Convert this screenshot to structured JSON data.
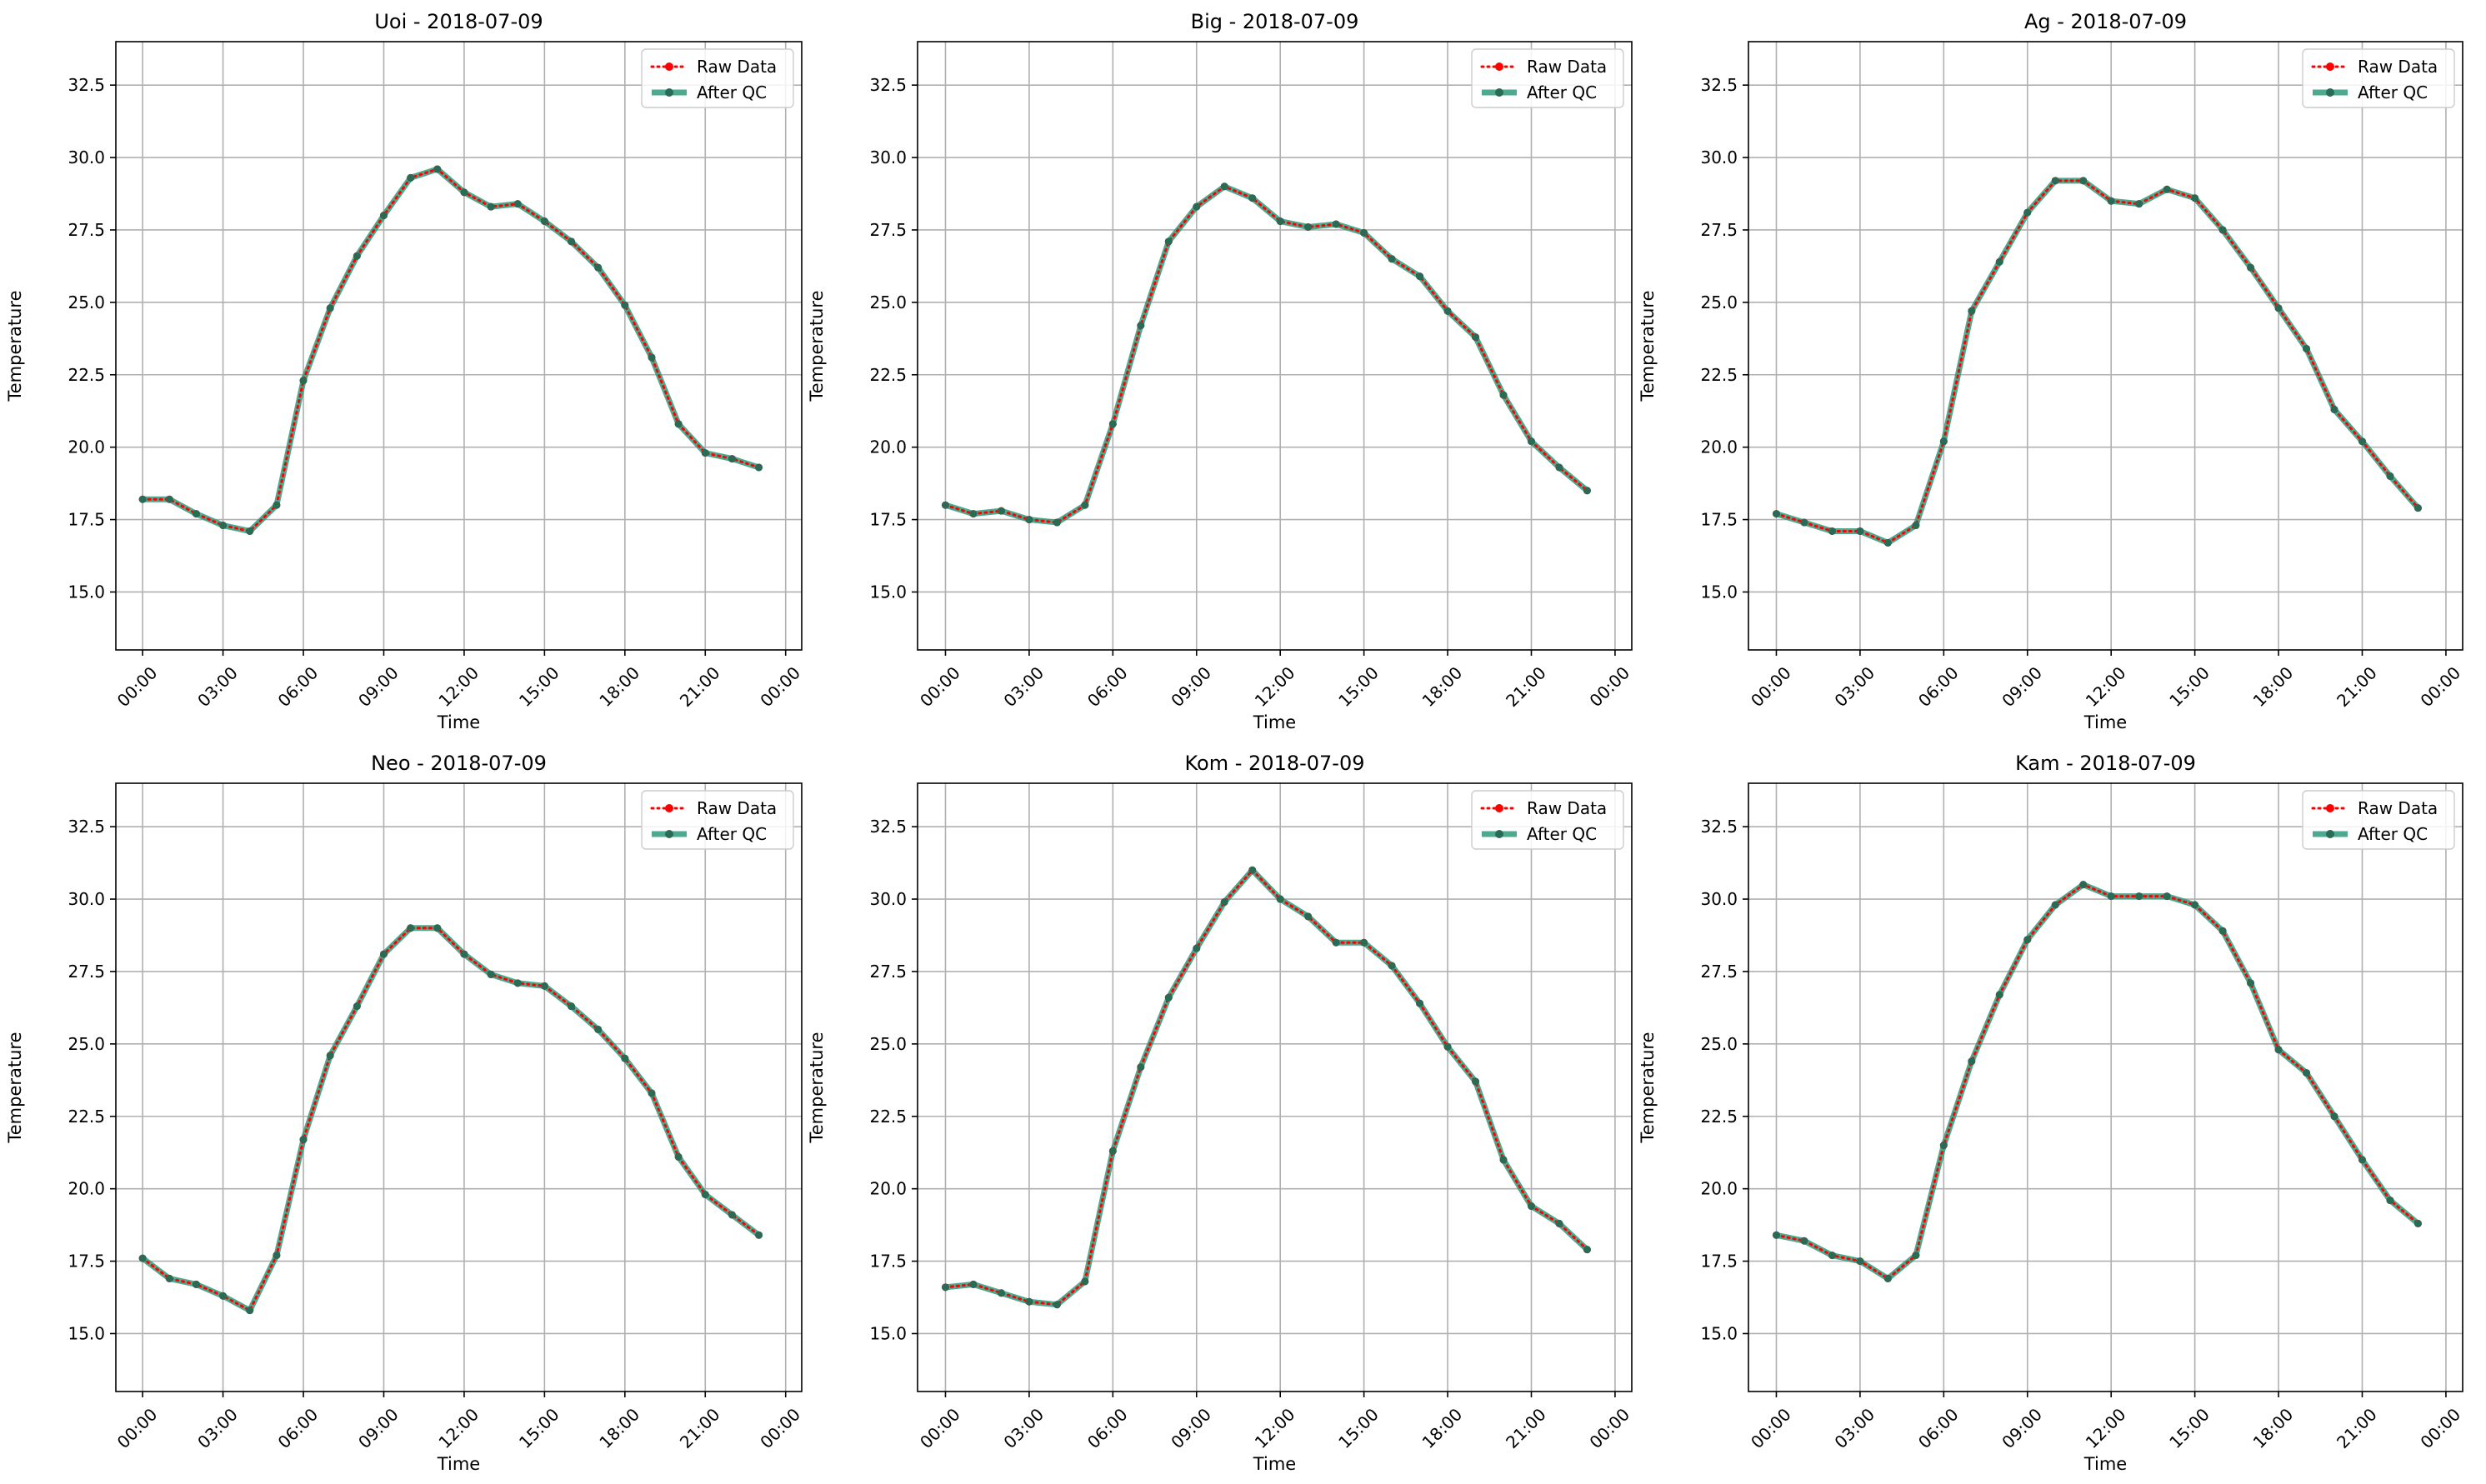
{
  "legend": {
    "raw_label": "Raw Data",
    "qc_label": "After QC"
  },
  "colors": {
    "raw": "#ff0000",
    "qc": "#2e9a7b",
    "qc_marker": "#2a6b55",
    "grid": "#b0b0b0",
    "axes": "#000000"
  },
  "chart_data": [
    {
      "type": "line",
      "title": "Uoi - 2018-07-09",
      "xlabel": "Time",
      "ylabel": "Temperature",
      "x_ticks": [
        "00:00",
        "03:00",
        "06:00",
        "09:00",
        "12:00",
        "15:00",
        "18:00",
        "21:00",
        "00:00"
      ],
      "x_hours": [
        0,
        1,
        2,
        3,
        4,
        5,
        6,
        7,
        8,
        9,
        10,
        11,
        12,
        13,
        14,
        15,
        16,
        17,
        18,
        19,
        20,
        21,
        22,
        23
      ],
      "yticks": [
        15.0,
        17.5,
        20.0,
        22.5,
        25.0,
        27.5,
        30.0,
        32.5
      ],
      "ylim": [
        13.0,
        34.0
      ],
      "grid": true,
      "legend_position": "top-right",
      "series": [
        {
          "name": "Raw Data",
          "style": "dotted",
          "values": [
            18.2,
            18.2,
            17.7,
            17.3,
            17.1,
            18.0,
            22.3,
            24.8,
            26.6,
            28.0,
            29.3,
            29.6,
            28.8,
            28.3,
            28.4,
            27.8,
            27.1,
            26.2,
            24.9,
            23.1,
            20.8,
            19.8,
            19.6,
            19.3
          ]
        },
        {
          "name": "After QC",
          "style": "solid",
          "values": [
            18.2,
            18.2,
            17.7,
            17.3,
            17.1,
            18.0,
            22.3,
            24.8,
            26.6,
            28.0,
            29.3,
            29.6,
            28.8,
            28.3,
            28.4,
            27.8,
            27.1,
            26.2,
            24.9,
            23.1,
            20.8,
            19.8,
            19.6,
            19.3
          ]
        }
      ]
    },
    {
      "type": "line",
      "title": "Big - 2018-07-09",
      "xlabel": "Time",
      "ylabel": "Temperature",
      "x_ticks": [
        "00:00",
        "03:00",
        "06:00",
        "09:00",
        "12:00",
        "15:00",
        "18:00",
        "21:00",
        "00:00"
      ],
      "x_hours": [
        0,
        1,
        2,
        3,
        4,
        5,
        6,
        7,
        8,
        9,
        10,
        11,
        12,
        13,
        14,
        15,
        16,
        17,
        18,
        19,
        20,
        21,
        22,
        23
      ],
      "yticks": [
        15.0,
        17.5,
        20.0,
        22.5,
        25.0,
        27.5,
        30.0,
        32.5
      ],
      "ylim": [
        13.0,
        34.0
      ],
      "grid": true,
      "legend_position": "top-right",
      "series": [
        {
          "name": "Raw Data",
          "style": "dotted",
          "values": [
            18.0,
            17.7,
            17.8,
            17.5,
            17.4,
            18.0,
            20.8,
            24.2,
            27.1,
            28.3,
            29.0,
            28.6,
            27.8,
            27.6,
            27.7,
            27.4,
            26.5,
            25.9,
            24.7,
            23.8,
            21.8,
            20.2,
            19.3,
            18.5
          ]
        },
        {
          "name": "After QC",
          "style": "solid",
          "values": [
            18.0,
            17.7,
            17.8,
            17.5,
            17.4,
            18.0,
            20.8,
            24.2,
            27.1,
            28.3,
            29.0,
            28.6,
            27.8,
            27.6,
            27.7,
            27.4,
            26.5,
            25.9,
            24.7,
            23.8,
            21.8,
            20.2,
            19.3,
            18.5
          ]
        }
      ]
    },
    {
      "type": "line",
      "title": "Ag - 2018-07-09",
      "xlabel": "Time",
      "ylabel": "Temperature",
      "x_ticks": [
        "00:00",
        "03:00",
        "06:00",
        "09:00",
        "12:00",
        "15:00",
        "18:00",
        "21:00",
        "00:00"
      ],
      "x_hours": [
        0,
        1,
        2,
        3,
        4,
        5,
        6,
        7,
        8,
        9,
        10,
        11,
        12,
        13,
        14,
        15,
        16,
        17,
        18,
        19,
        20,
        21,
        22,
        23
      ],
      "yticks": [
        15.0,
        17.5,
        20.0,
        22.5,
        25.0,
        27.5,
        30.0,
        32.5
      ],
      "ylim": [
        13.0,
        34.0
      ],
      "grid": true,
      "legend_position": "top-right",
      "series": [
        {
          "name": "Raw Data",
          "style": "dotted",
          "values": [
            17.7,
            17.4,
            17.1,
            17.1,
            16.7,
            17.3,
            20.2,
            24.7,
            26.4,
            28.1,
            29.2,
            29.2,
            28.5,
            28.4,
            28.9,
            28.6,
            27.5,
            26.2,
            24.8,
            23.4,
            21.3,
            20.2,
            19.0,
            17.9
          ]
        },
        {
          "name": "After QC",
          "style": "solid",
          "values": [
            17.7,
            17.4,
            17.1,
            17.1,
            16.7,
            17.3,
            20.2,
            24.7,
            26.4,
            28.1,
            29.2,
            29.2,
            28.5,
            28.4,
            28.9,
            28.6,
            27.5,
            26.2,
            24.8,
            23.4,
            21.3,
            20.2,
            19.0,
            17.9
          ]
        }
      ]
    },
    {
      "type": "line",
      "title": "Neo - 2018-07-09",
      "xlabel": "Time",
      "ylabel": "Temperature",
      "x_ticks": [
        "00:00",
        "03:00",
        "06:00",
        "09:00",
        "12:00",
        "15:00",
        "18:00",
        "21:00",
        "00:00"
      ],
      "x_hours": [
        0,
        1,
        2,
        3,
        4,
        5,
        6,
        7,
        8,
        9,
        10,
        11,
        12,
        13,
        14,
        15,
        16,
        17,
        18,
        19,
        20,
        21,
        22,
        23
      ],
      "yticks": [
        15.0,
        17.5,
        20.0,
        22.5,
        25.0,
        27.5,
        30.0,
        32.5
      ],
      "ylim": [
        13.0,
        34.0
      ],
      "grid": true,
      "legend_position": "top-right",
      "series": [
        {
          "name": "Raw Data",
          "style": "dotted",
          "values": [
            17.6,
            16.9,
            16.7,
            16.3,
            15.8,
            17.7,
            21.7,
            24.6,
            26.3,
            28.1,
            29.0,
            29.0,
            28.1,
            27.4,
            27.1,
            27.0,
            26.3,
            25.5,
            24.5,
            23.3,
            21.1,
            19.8,
            19.1,
            18.4
          ]
        },
        {
          "name": "After QC",
          "style": "solid",
          "values": [
            17.6,
            16.9,
            16.7,
            16.3,
            15.8,
            17.7,
            21.7,
            24.6,
            26.3,
            28.1,
            29.0,
            29.0,
            28.1,
            27.4,
            27.1,
            27.0,
            26.3,
            25.5,
            24.5,
            23.3,
            21.1,
            19.8,
            19.1,
            18.4
          ]
        }
      ]
    },
    {
      "type": "line",
      "title": "Kom - 2018-07-09",
      "xlabel": "Time",
      "ylabel": "Temperature",
      "x_ticks": [
        "00:00",
        "03:00",
        "06:00",
        "09:00",
        "12:00",
        "15:00",
        "18:00",
        "21:00",
        "00:00"
      ],
      "x_hours": [
        0,
        1,
        2,
        3,
        4,
        5,
        6,
        7,
        8,
        9,
        10,
        11,
        12,
        13,
        14,
        15,
        16,
        17,
        18,
        19,
        20,
        21,
        22,
        23
      ],
      "yticks": [
        15.0,
        17.5,
        20.0,
        22.5,
        25.0,
        27.5,
        30.0,
        32.5
      ],
      "ylim": [
        13.0,
        34.0
      ],
      "grid": true,
      "legend_position": "top-right",
      "series": [
        {
          "name": "Raw Data",
          "style": "dotted",
          "values": [
            16.6,
            16.7,
            16.4,
            16.1,
            16.0,
            16.8,
            21.3,
            24.2,
            26.6,
            28.3,
            29.9,
            31.0,
            30.0,
            29.4,
            28.5,
            28.5,
            27.7,
            26.4,
            24.9,
            23.7,
            21.0,
            19.4,
            18.8,
            17.9
          ]
        },
        {
          "name": "After QC",
          "style": "solid",
          "values": [
            16.6,
            16.7,
            16.4,
            16.1,
            16.0,
            16.8,
            21.3,
            24.2,
            26.6,
            28.3,
            29.9,
            31.0,
            30.0,
            29.4,
            28.5,
            28.5,
            27.7,
            26.4,
            24.9,
            23.7,
            21.0,
            19.4,
            18.8,
            17.9
          ]
        }
      ]
    },
    {
      "type": "line",
      "title": "Kam - 2018-07-09",
      "xlabel": "Time",
      "ylabel": "Temperature",
      "x_ticks": [
        "00:00",
        "03:00",
        "06:00",
        "09:00",
        "12:00",
        "15:00",
        "18:00",
        "21:00",
        "00:00"
      ],
      "x_hours": [
        0,
        1,
        2,
        3,
        4,
        5,
        6,
        7,
        8,
        9,
        10,
        11,
        12,
        13,
        14,
        15,
        16,
        17,
        18,
        19,
        20,
        21,
        22,
        23
      ],
      "yticks": [
        15.0,
        17.5,
        20.0,
        22.5,
        25.0,
        27.5,
        30.0,
        32.5
      ],
      "ylim": [
        13.0,
        34.0
      ],
      "grid": true,
      "legend_position": "top-right",
      "series": [
        {
          "name": "Raw Data",
          "style": "dotted",
          "values": [
            18.4,
            18.2,
            17.7,
            17.5,
            16.9,
            17.7,
            21.5,
            24.4,
            26.7,
            28.6,
            29.8,
            30.5,
            30.1,
            30.1,
            30.1,
            29.8,
            28.9,
            27.1,
            24.8,
            24.0,
            22.5,
            21.0,
            19.6,
            18.8
          ]
        },
        {
          "name": "After QC",
          "style": "solid",
          "values": [
            18.4,
            18.2,
            17.7,
            17.5,
            16.9,
            17.7,
            21.5,
            24.4,
            26.7,
            28.6,
            29.8,
            30.5,
            30.1,
            30.1,
            30.1,
            29.8,
            28.9,
            27.1,
            24.8,
            24.0,
            22.5,
            21.0,
            19.6,
            18.8
          ]
        }
      ]
    }
  ]
}
